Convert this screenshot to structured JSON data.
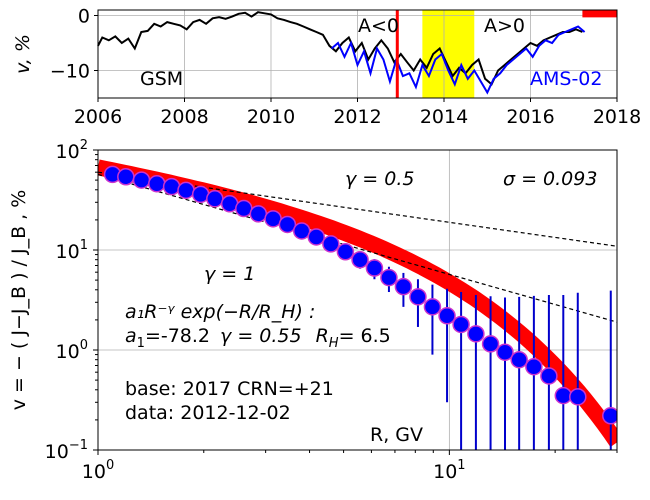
{
  "chart_data": [
    {
      "type": "line",
      "panel": "top",
      "ylabel": "v, %",
      "xlim": [
        2006,
        2018
      ],
      "ylim": [
        -15,
        1
      ],
      "xticks": [
        "2006",
        "2008",
        "2010",
        "2012",
        "2014",
        "2016",
        "2018"
      ],
      "yticks": [
        "0",
        "−10"
      ],
      "grid": true,
      "annotations": {
        "gsm": "GSM",
        "ams": "AMS-02",
        "a_neg": "A<0",
        "a_pos": "A>0"
      },
      "colors": {
        "gsm": "#000000",
        "ams": "#0000ff",
        "marker": "#ff0000",
        "reversal": "#ffff00"
      },
      "reversal_band": [
        2013.5,
        2014.7
      ],
      "current_date_marker": 2012.92,
      "base_period_bar": [
        2017.2,
        2018
      ],
      "series": [
        {
          "name": "GSM",
          "color": "#000000",
          "x": [
            2006.0,
            2006.1,
            2006.25,
            2006.4,
            2006.55,
            2006.7,
            2006.85,
            2007.0,
            2007.15,
            2007.3,
            2007.45,
            2007.6,
            2007.75,
            2007.9,
            2008.05,
            2008.2,
            2008.35,
            2008.5,
            2008.65,
            2008.8,
            2008.95,
            2009.1,
            2009.25,
            2009.4,
            2009.55,
            2009.7,
            2009.85,
            2010.0,
            2010.15,
            2010.3,
            2010.45,
            2010.6,
            2010.75,
            2010.9,
            2011.05,
            2011.2,
            2011.35,
            2011.5,
            2011.65,
            2011.8,
            2011.95,
            2012.1,
            2012.25,
            2012.4,
            2012.55,
            2012.7,
            2012.85,
            2013.0,
            2013.15,
            2013.3,
            2013.45,
            2013.6,
            2013.75,
            2013.9,
            2014.05,
            2014.2,
            2014.35,
            2014.5,
            2014.65,
            2014.8,
            2014.95,
            2015.1,
            2015.25,
            2015.4,
            2015.55,
            2015.7,
            2015.85,
            2016.0,
            2016.15,
            2016.3,
            2016.45,
            2016.6,
            2016.75,
            2016.9,
            2017.05,
            2017.2
          ],
          "y": [
            -5.5,
            -4.0,
            -4.5,
            -3.8,
            -5.0,
            -4.2,
            -6.0,
            -3.0,
            -2.8,
            -1.5,
            -2.0,
            -1.2,
            -1.5,
            -1.8,
            -2.5,
            -1.2,
            -0.8,
            -1.5,
            -0.5,
            -0.3,
            -0.6,
            -0.2,
            0.3,
            0.5,
            -0.2,
            0.6,
            0.4,
            0.2,
            -0.5,
            -0.8,
            -1.2,
            -1.5,
            -2.0,
            -2.5,
            -3.0,
            -3.5,
            -5.5,
            -6.5,
            -5.0,
            -4.0,
            -6.5,
            -5.0,
            -8.0,
            -6.0,
            -4.5,
            -6.0,
            -8.5,
            -7.0,
            -8.5,
            -10.0,
            -8.0,
            -9.5,
            -7.0,
            -6.0,
            -8.5,
            -11.0,
            -9.5,
            -10.5,
            -9.0,
            -8.0,
            -11.5,
            -12.5,
            -10.0,
            -9.0,
            -8.0,
            -7.0,
            -6.0,
            -5.0,
            -5.5,
            -4.5,
            -4.0,
            -3.5,
            -3.0,
            -3.0,
            -2.5,
            -3.0
          ]
        },
        {
          "name": "AMS-02",
          "color": "#0000ff",
          "x": [
            2011.4,
            2011.55,
            2011.7,
            2011.85,
            2012.0,
            2012.15,
            2012.3,
            2012.45,
            2012.6,
            2012.75,
            2012.9,
            2013.05,
            2013.2,
            2013.35,
            2013.5,
            2013.65,
            2013.8,
            2013.95,
            2014.1,
            2014.25,
            2014.4,
            2014.55,
            2014.7,
            2014.85,
            2015.0,
            2015.15,
            2015.3,
            2015.45,
            2015.6,
            2015.75,
            2015.9,
            2016.05,
            2016.2,
            2016.35,
            2016.5,
            2016.65,
            2016.8,
            2016.95,
            2017.1,
            2017.25
          ],
          "y": [
            -6.0,
            -5.0,
            -7.5,
            -5.0,
            -9.0,
            -6.5,
            -10.5,
            -6.0,
            -8.0,
            -12.0,
            -8.0,
            -11.0,
            -10.5,
            -13.0,
            -9.0,
            -11.0,
            -8.0,
            -7.0,
            -10.0,
            -12.5,
            -9.0,
            -11.5,
            -10.0,
            -12.0,
            -14.0,
            -11.5,
            -10.5,
            -9.0,
            -8.0,
            -7.0,
            -6.0,
            -7.5,
            -5.5,
            -4.5,
            -5.0,
            -3.5,
            -3.0,
            -2.5,
            -2.0,
            -3.0
          ]
        }
      ]
    },
    {
      "type": "scatter",
      "panel": "bottom",
      "xlabel": "R, GV",
      "ylabel": "v = − ( J−J_B ) / J_B , %",
      "xscale": "log",
      "yscale": "log",
      "xlim": [
        1.0,
        30.0
      ],
      "ylim": [
        0.1,
        100
      ],
      "xticks": [
        {
          "v": 1,
          "m": "10",
          "e": "0"
        },
        {
          "v": 10,
          "m": "10",
          "e": "1"
        }
      ],
      "yticks": [
        {
          "v": 0.1,
          "m": "10",
          "e": "−1"
        },
        {
          "v": 1,
          "m": "10",
          "e": "0"
        },
        {
          "v": 10,
          "m": "10",
          "e": "1"
        },
        {
          "v": 100,
          "m": "10",
          "e": "2"
        }
      ],
      "grid": true,
      "colors": {
        "points": "#0000ff",
        "point_edge": "#cc33cc",
        "fit_band": "#ff0000",
        "errorbar": "#0000cc"
      },
      "annotations": {
        "gamma_half": "γ = 0.5",
        "gamma_one": "γ = 1",
        "sigma": "σ = 0.093",
        "formula": "a₁R⁻ᵞ exp(−R/R_H) :",
        "params_a": "a",
        "params_a_sub": "1",
        "params_a_val": "=-78.2",
        "params_gamma": "γ = 0.55",
        "params_rh": "R",
        "params_rh_sub": "H",
        "params_rh_val": "=  6.5",
        "base": "base: 2017   CRN=+21",
        "data": "data: 2012-12-02"
      },
      "fit": {
        "a1": -78.2,
        "gamma": 0.55,
        "R_H": 6.5
      },
      "reference_lines": [
        {
          "label": "γ = 0.5",
          "x": [
            1.0,
            30.0
          ],
          "y": [
            60,
            10.9
          ]
        },
        {
          "label": "γ = 1",
          "x": [
            1.0,
            30.0
          ],
          "y": [
            57,
            1.9
          ]
        }
      ],
      "x": [
        1.1,
        1.2,
        1.33,
        1.47,
        1.62,
        1.78,
        1.96,
        2.15,
        2.37,
        2.6,
        2.86,
        3.15,
        3.46,
        3.8,
        4.18,
        4.6,
        5.06,
        5.57,
        6.12,
        6.73,
        7.4,
        8.14,
        8.95,
        9.85,
        10.8,
        11.9,
        13.1,
        14.4,
        15.8,
        17.4,
        19.2,
        21.1,
        23.2,
        28.8
      ],
      "y": [
        57,
        54,
        50,
        46,
        43,
        39.5,
        36,
        32.5,
        29,
        26,
        23,
        20.5,
        18,
        15.5,
        13.5,
        11.5,
        9.6,
        8.0,
        6.6,
        5.3,
        4.3,
        3.4,
        2.7,
        2.2,
        1.8,
        1.45,
        1.15,
        0.95,
        0.8,
        0.68,
        0.55,
        0.35,
        0.34,
        0.22
      ],
      "yerr": [
        1.5,
        1.5,
        1.5,
        1.5,
        1.5,
        1.5,
        1.5,
        1.5,
        1.5,
        1.5,
        1.5,
        1.5,
        1.5,
        1.5,
        1.5,
        1.5,
        1.5,
        1.5,
        1.5,
        1.5,
        1.6,
        1.7,
        1.8,
        1.9,
        2.0,
        2.1,
        2.3,
        2.4,
        2.6,
        2.8,
        3.0,
        3.2,
        3.4,
        3.7
      ]
    }
  ]
}
